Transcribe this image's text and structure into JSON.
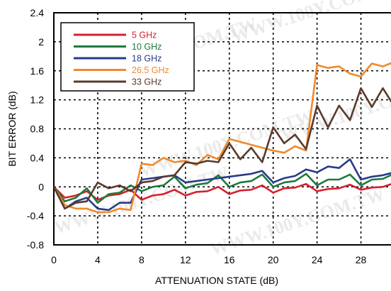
{
  "watermark": "WWW.100Y.COM.TW",
  "chart_data": {
    "type": "line",
    "title": "",
    "xlabel": "ATTENUATION STATE (dB)",
    "ylabel": "BIT ERROR (dB)",
    "xlim": [
      0,
      31
    ],
    "ylim": [
      -0.8,
      2.4
    ],
    "xticks": [
      0,
      4,
      8,
      12,
      16,
      20,
      24,
      28
    ],
    "xtick_labels": [
      "0",
      "4",
      "8",
      "12",
      "16",
      "20",
      "24",
      "28"
    ],
    "yticks": [
      -0.8,
      -0.4,
      0,
      0.4,
      0.8,
      1.2,
      1.6,
      2,
      2.4
    ],
    "ytick_labels": [
      "-0.8",
      "-0.4",
      "0",
      "0.4",
      "0.8",
      "1.2",
      "1.6",
      "2",
      "2.4"
    ],
    "grid": true,
    "legend_position": "top-left",
    "x": [
      0,
      1,
      2,
      3,
      4,
      5,
      6,
      7,
      8,
      9,
      10,
      11,
      12,
      13,
      14,
      15,
      16,
      17,
      18,
      19,
      20,
      21,
      22,
      23,
      24,
      25,
      26,
      27,
      28,
      29,
      30,
      31
    ],
    "series": [
      {
        "name": "5 GHz",
        "color": "#d6202f",
        "values": [
          0,
          -0.15,
          -0.12,
          -0.06,
          -0.18,
          -0.12,
          -0.1,
          -0.04,
          -0.18,
          -0.12,
          -0.1,
          -0.04,
          -0.12,
          -0.07,
          -0.06,
          0.0,
          -0.1,
          -0.05,
          -0.04,
          0.02,
          -0.08,
          -0.02,
          -0.01,
          0.04,
          -0.06,
          -0.03,
          -0.02,
          0.03,
          -0.04,
          -0.01,
          0.0,
          0.05
        ]
      },
      {
        "name": "10 GHz",
        "color": "#1e7a3c",
        "values": [
          0,
          -0.2,
          -0.15,
          -0.02,
          -0.22,
          -0.1,
          -0.08,
          0.02,
          -0.06,
          0.0,
          0.02,
          0.14,
          -0.02,
          0.03,
          0.05,
          0.16,
          0.0,
          0.06,
          0.08,
          0.17,
          0.0,
          0.06,
          0.08,
          0.18,
          0.02,
          0.1,
          0.1,
          0.17,
          0.02,
          0.1,
          0.11,
          0.18
        ]
      },
      {
        "name": "18 GHz",
        "color": "#283a8c",
        "values": [
          0,
          -0.3,
          -0.2,
          -0.15,
          -0.3,
          -0.32,
          -0.22,
          -0.22,
          0.1,
          0.12,
          0.14,
          0.16,
          0.06,
          0.08,
          0.1,
          0.12,
          0.14,
          0.16,
          0.18,
          0.22,
          0.06,
          0.12,
          0.15,
          0.24,
          0.2,
          0.28,
          0.26,
          0.38,
          0.1,
          0.14,
          0.16,
          0.2
        ]
      },
      {
        "name": "26.5 GHz",
        "color": "#f08a2c",
        "values": [
          0,
          -0.25,
          -0.3,
          -0.3,
          -0.35,
          -0.35,
          -0.3,
          -0.32,
          0.32,
          0.3,
          0.4,
          0.34,
          0.36,
          0.3,
          0.44,
          0.38,
          0.66,
          0.62,
          0.58,
          0.54,
          0.5,
          0.47,
          0.56,
          0.5,
          1.68,
          1.64,
          1.66,
          1.56,
          1.52,
          1.7,
          1.66,
          1.72
        ]
      },
      {
        "name": "33 GHz",
        "color": "#5a3a2c",
        "values": [
          0,
          -0.3,
          -0.22,
          -0.2,
          0.06,
          -0.02,
          0.02,
          -0.06,
          0.06,
          0.08,
          0.14,
          0.16,
          0.34,
          0.32,
          0.36,
          0.34,
          0.6,
          0.38,
          0.54,
          0.34,
          0.82,
          0.6,
          0.72,
          0.52,
          1.12,
          0.82,
          1.12,
          0.92,
          1.36,
          1.1,
          1.36,
          1.12
        ]
      }
    ]
  }
}
